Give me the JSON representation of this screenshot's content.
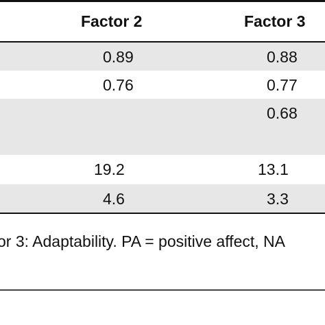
{
  "table": {
    "headers": [
      "Factor 2",
      "Factor 3"
    ],
    "rows": [
      [
        "0.89",
        "0.88"
      ],
      [
        "0.76",
        "0.77"
      ],
      [
        "",
        "0.68"
      ],
      [
        "",
        ""
      ],
      [
        "19.2",
        "13.1"
      ],
      [
        "4.6",
        "3.3"
      ]
    ]
  },
  "footnote": "or 3: Adaptability. PA = positive affect, NA"
}
